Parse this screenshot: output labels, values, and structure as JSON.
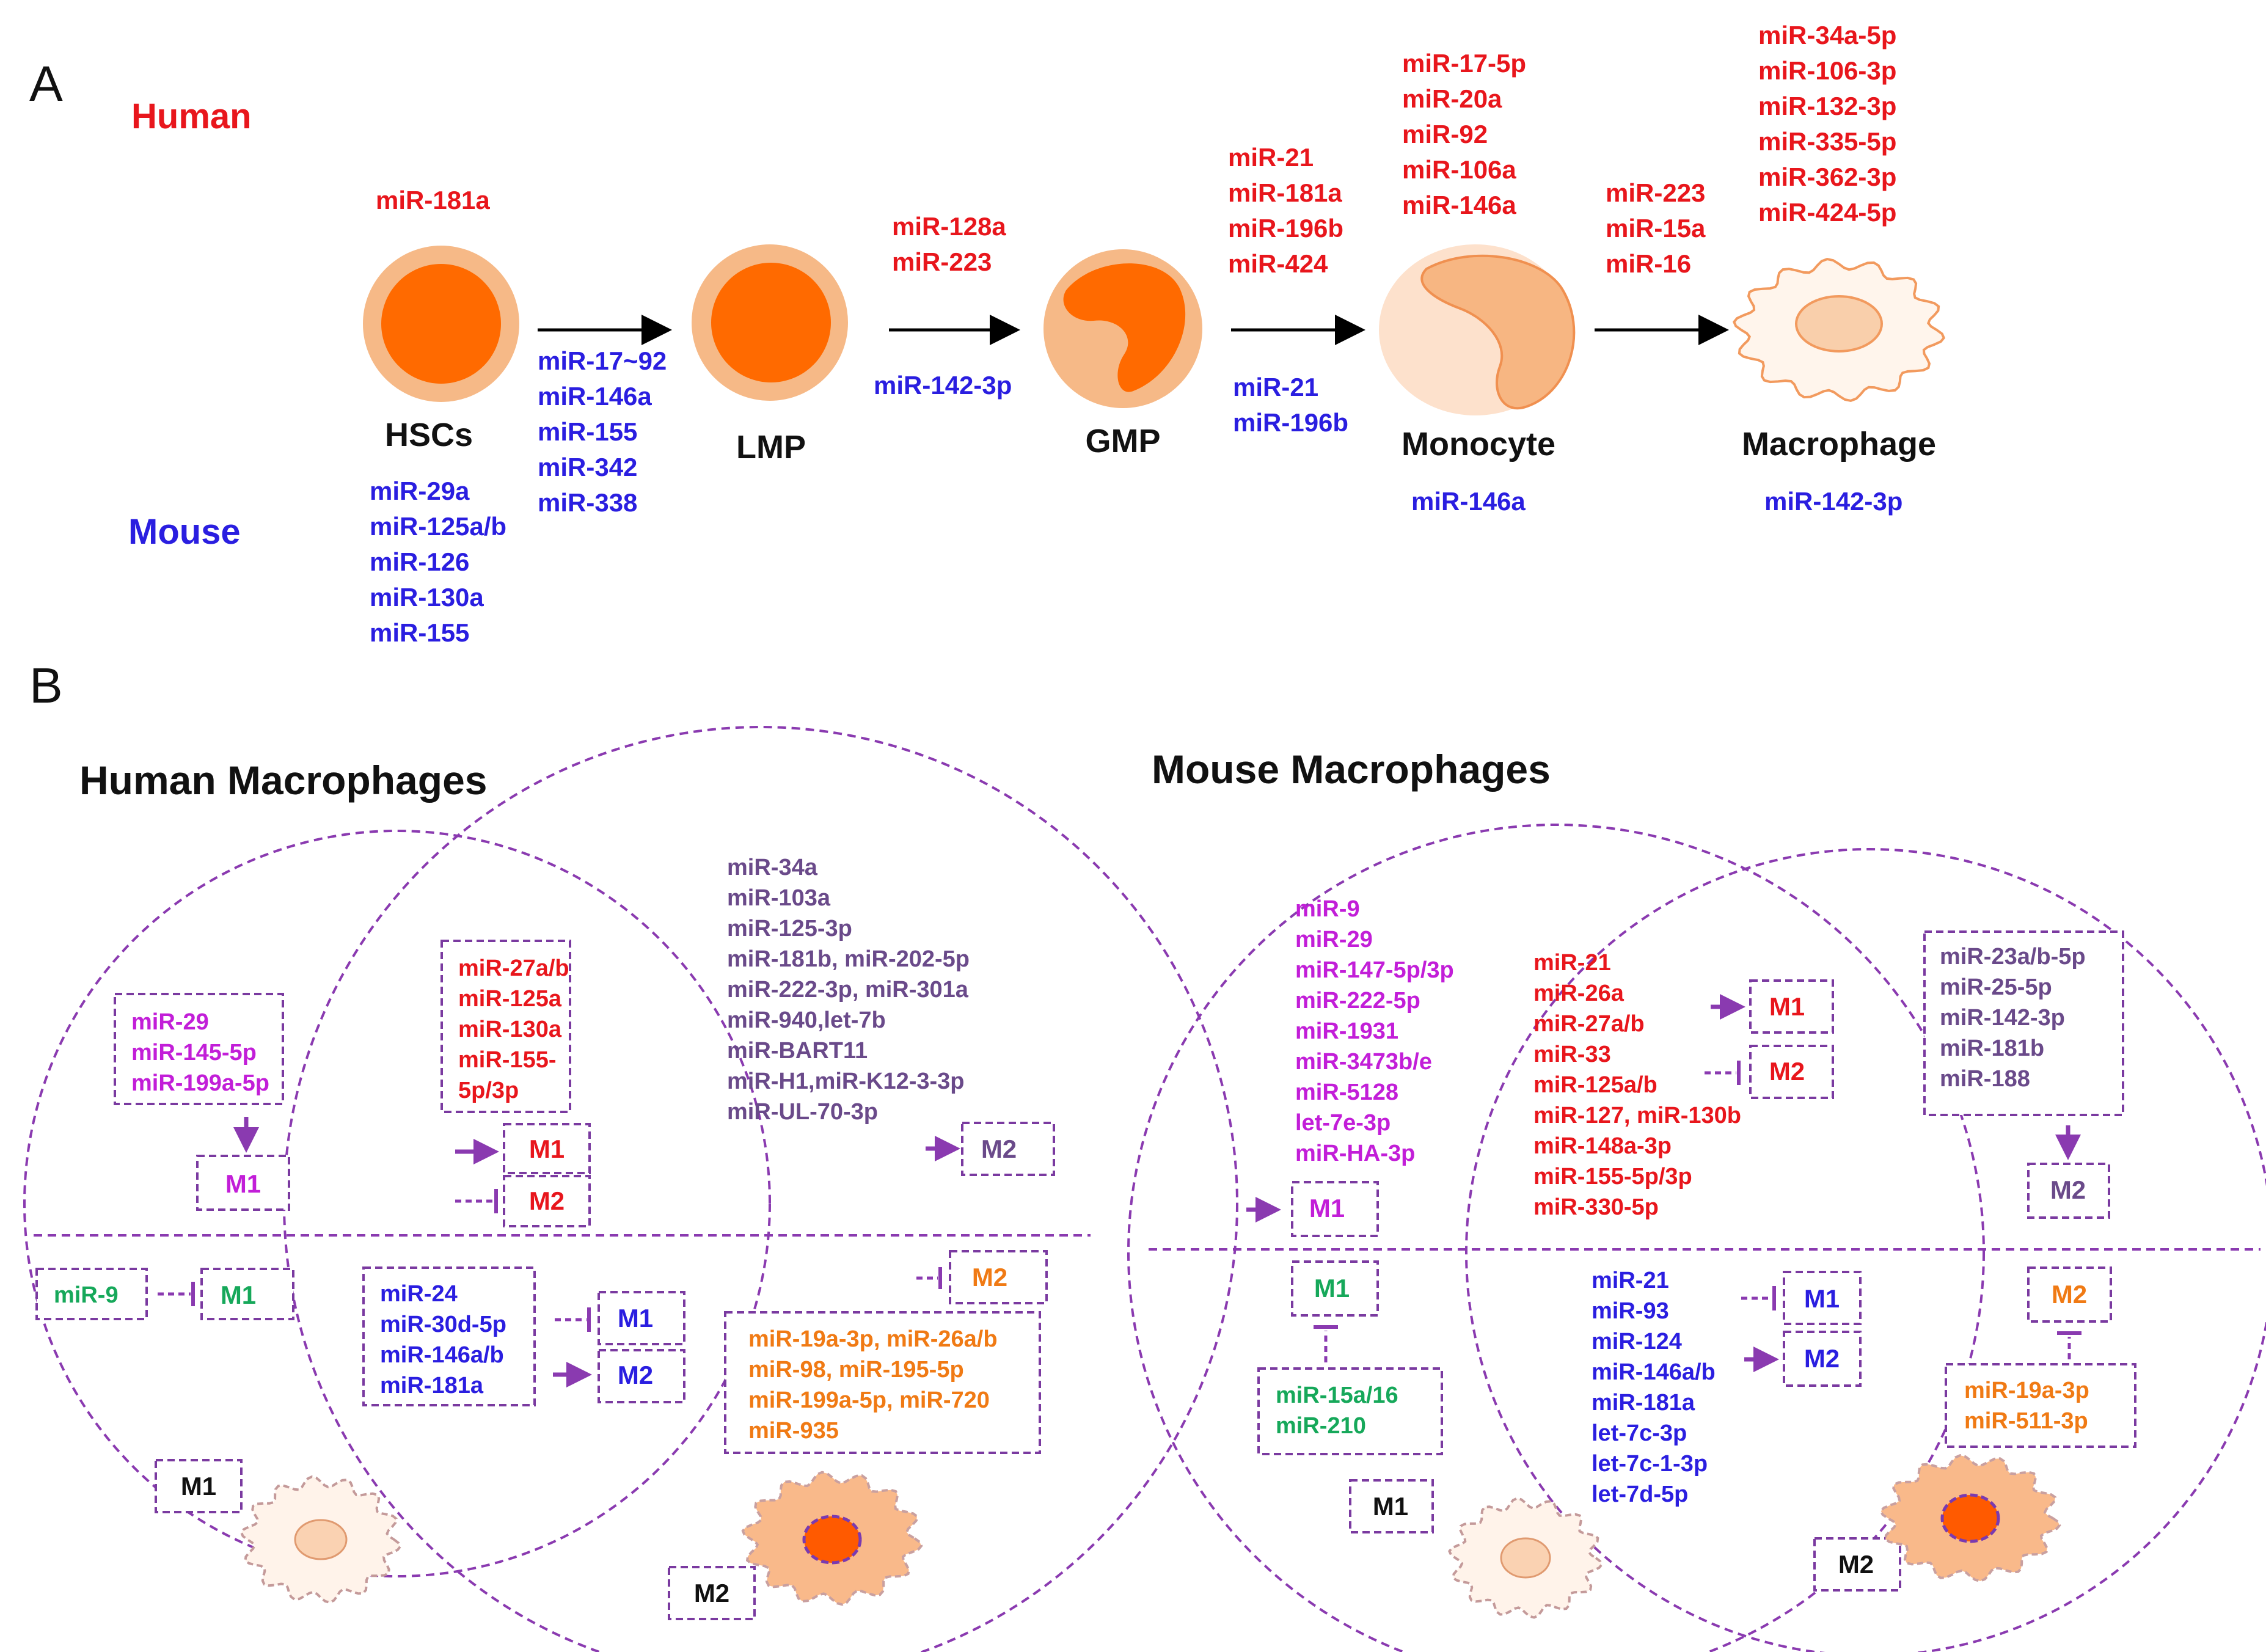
{
  "panelA": {
    "label": "A",
    "human_label": "Human",
    "mouse_label": "Mouse",
    "stages": {
      "hsc": "HSCs",
      "lmp": "LMP",
      "gmp": "GMP",
      "monocyte": "Monocyte",
      "macrophage": "Macrophage"
    },
    "hsc_human": [
      "miR-181a"
    ],
    "hsc_mouse": [
      "miR-29a",
      "miR-125a/b",
      "miR-126",
      "miR-130a",
      "miR-155"
    ],
    "hsc_lmp_mouse": [
      "miR-17~92",
      "miR-146a",
      "miR-155",
      "miR-342",
      "miR-338"
    ],
    "lmp_gmp_human": [
      "miR-128a",
      "miR-223"
    ],
    "lmp_gmp_mouse": [
      "miR-142-3p"
    ],
    "gmp_mono_human": [
      "miR-21",
      "miR-181a",
      "miR-196b",
      "miR-424"
    ],
    "gmp_mono_mouse": [
      "miR-21",
      "miR-196b"
    ],
    "mono_human": [
      "miR-17-5p",
      "miR-20a",
      "miR-92",
      "miR-106a",
      "miR-146a"
    ],
    "mono_mouse": [
      "miR-146a"
    ],
    "mono_mac_human": [
      "miR-223",
      "miR-15a",
      "miR-16"
    ],
    "mac_human": [
      "miR-34a-5p",
      "miR-106-3p",
      "miR-132-3p",
      "miR-335-5p",
      "miR-362-3p",
      "miR-424-5p"
    ],
    "mac_mouse": [
      "miR-142-3p"
    ]
  },
  "panelB": {
    "label": "B",
    "human": {
      "title": "Human Macrophages",
      "m1_promote": [
        "miR-29",
        "miR-145-5p",
        "miR-199a-5p"
      ],
      "m1_label": "M1",
      "m2_label": "M2",
      "dual_top": [
        "miR-27a/b",
        "miR-125a",
        "miR-130a",
        "miR-155-",
        "5p/3p"
      ],
      "m2_promote": [
        "miR-34a",
        "miR-103a",
        "miR-125-3p",
        "miR-181b, miR-202-5p",
        "miR-222-3p, miR-301a",
        "miR-940,let-7b",
        "miR-BART11",
        "miR-H1,miR-K12-3-3p",
        "miR-UL-70-3p"
      ],
      "m1_inhibit": [
        "miR-9"
      ],
      "dual_bottom": [
        "miR-24",
        "miR-30d-5p",
        "miR-146a/b",
        "miR-181a"
      ],
      "m2_inhibit": [
        "miR-19a-3p, miR-26a/b",
        "miR-98, miR-195-5p",
        "miR-199a-5p, miR-720",
        "miR-935"
      ]
    },
    "mouse": {
      "title": "Mouse Macrophages",
      "m1_label": "M1",
      "m2_label": "M2",
      "m1_promote": [
        "miR-9",
        "miR-29",
        "miR-147-5p/3p",
        "miR-222-5p",
        "miR-1931",
        "miR-3473b/e",
        "miR-5128",
        "let-7e-3p",
        "miR-HA-3p"
      ],
      "dual_top": [
        "miR-21",
        "miR-26a",
        "miR-27a/b",
        "miR-33",
        "miR-125a/b",
        "miR-127, miR-130b",
        "miR-148a-3p",
        "miR-155-5p/3p",
        "miR-330-5p"
      ],
      "m2_promote": [
        "miR-23a/b-5p",
        "miR-25-5p",
        "miR-142-3p",
        "miR-181b",
        "miR-188"
      ],
      "m1_inhibit": [
        "miR-15a/16",
        "miR-210"
      ],
      "dual_bottom": [
        "miR-21",
        "miR-93",
        "miR-124",
        "miR-146a/b",
        "miR-181a",
        "let-7c-3p",
        "let-7c-1-3p",
        "let-7d-5p"
      ],
      "m2_inhibit": [
        "miR-19a-3p",
        "miR-511-3p"
      ]
    }
  }
}
